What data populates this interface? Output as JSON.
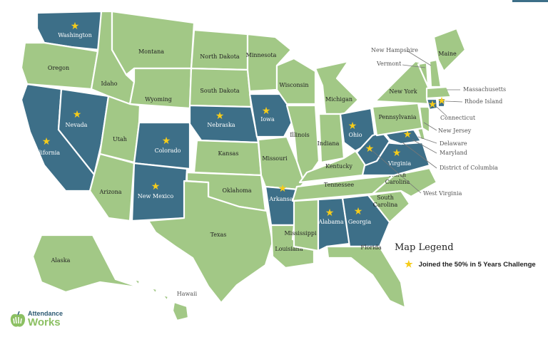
{
  "colors": {
    "joined": "#3d6f88",
    "not_joined": "#a2c886",
    "star": "#f6cc1a",
    "border": "#ffffff"
  },
  "states": [
    {
      "id": "WA",
      "label": "Washington",
      "joined": true
    },
    {
      "id": "OR",
      "label": "Oregon",
      "joined": false
    },
    {
      "id": "CA",
      "label": "California",
      "joined": true
    },
    {
      "id": "NV",
      "label": "Nevada",
      "joined": true
    },
    {
      "id": "ID",
      "label": "Idaho",
      "joined": false
    },
    {
      "id": "MT",
      "label": "Montana",
      "joined": false
    },
    {
      "id": "WY",
      "label": "Wyoming",
      "joined": false
    },
    {
      "id": "UT",
      "label": "Utah",
      "joined": false
    },
    {
      "id": "CO",
      "label": "Colorado",
      "joined": true
    },
    {
      "id": "AZ",
      "label": "Arizona",
      "joined": false
    },
    {
      "id": "NM",
      "label": "New Mexico",
      "joined": true
    },
    {
      "id": "ND",
      "label": "North Dakota",
      "joined": false
    },
    {
      "id": "SD",
      "label": "South Dakota",
      "joined": false
    },
    {
      "id": "NE",
      "label": "Nebraska",
      "joined": true
    },
    {
      "id": "KS",
      "label": "Kansas",
      "joined": false
    },
    {
      "id": "OK",
      "label": "Oklahoma",
      "joined": false
    },
    {
      "id": "TX",
      "label": "Texas",
      "joined": false
    },
    {
      "id": "MN",
      "label": "Minnesota",
      "joined": false
    },
    {
      "id": "IA",
      "label": "Iowa",
      "joined": true
    },
    {
      "id": "MO",
      "label": "Missouri",
      "joined": false
    },
    {
      "id": "AR",
      "label": "Arkansas",
      "joined": true
    },
    {
      "id": "LA",
      "label": "Louisiana",
      "joined": false
    },
    {
      "id": "WI",
      "label": "Wisconsin",
      "joined": false
    },
    {
      "id": "IL",
      "label": "Illinois",
      "joined": false
    },
    {
      "id": "MI",
      "label": "Michigan",
      "joined": false
    },
    {
      "id": "IN",
      "label": "Indiana",
      "joined": false
    },
    {
      "id": "OH",
      "label": "Ohio",
      "joined": true
    },
    {
      "id": "KY",
      "label": "Kentucky",
      "joined": false
    },
    {
      "id": "TN",
      "label": "Tennessee",
      "joined": false
    },
    {
      "id": "MS",
      "label": "Mississippi",
      "joined": false
    },
    {
      "id": "AL",
      "label": "Alabama",
      "joined": true
    },
    {
      "id": "GA",
      "label": "Georgia",
      "joined": true
    },
    {
      "id": "FL",
      "label": "Florida",
      "joined": false
    },
    {
      "id": "SC",
      "label": "South\nCarolina",
      "joined": false
    },
    {
      "id": "NC",
      "label": "North\nCarolina",
      "joined": false
    },
    {
      "id": "VA",
      "label": "Virginia",
      "joined": true
    },
    {
      "id": "WV",
      "label": "",
      "joined": true
    },
    {
      "id": "MD",
      "label": "",
      "joined": true
    },
    {
      "id": "DE",
      "label": "",
      "joined": false
    },
    {
      "id": "PA",
      "label": "Pennsylvania",
      "joined": false
    },
    {
      "id": "NY",
      "label": "New York",
      "joined": false
    },
    {
      "id": "NJ",
      "label": "",
      "joined": false
    },
    {
      "id": "VT",
      "label": "",
      "joined": false
    },
    {
      "id": "NH",
      "label": "",
      "joined": false
    },
    {
      "id": "ME",
      "label": "Maine",
      "joined": false
    },
    {
      "id": "MA",
      "label": "",
      "joined": false
    },
    {
      "id": "CT",
      "label": "",
      "joined": true
    },
    {
      "id": "RI",
      "label": "",
      "joined": true
    },
    {
      "id": "AK",
      "label": "Alaska",
      "joined": false
    },
    {
      "id": "HI",
      "label": "Hawaii",
      "joined": false
    }
  ],
  "callouts": [
    "New Hampshire",
    "Vermont",
    "Massachusetts",
    "Rhode Island",
    "Connecticut",
    "New Jersey",
    "Delaware",
    "Maryland",
    "District of Columbia",
    "West Virginia"
  ],
  "legend": {
    "title": "Map Legend",
    "items": [
      {
        "icon": "star-icon",
        "label": "Joined the 50% in 5 Years Challenge"
      }
    ]
  },
  "logo": {
    "line1": "Attendance",
    "line2": "Works"
  }
}
